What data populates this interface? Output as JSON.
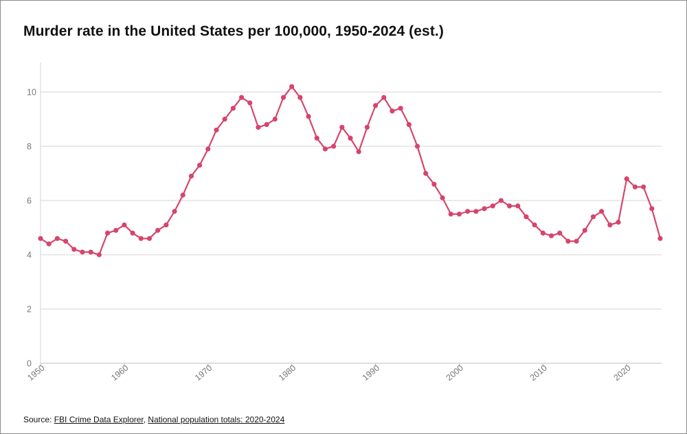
{
  "chart_data": {
    "type": "line",
    "title": "Murder rate in the United States per 100,000, 1950-2024 (est.)",
    "xlabel": "",
    "ylabel": "",
    "xlim": [
      1950,
      2024
    ],
    "ylim": [
      0,
      11
    ],
    "yticks": [
      0,
      2,
      4,
      6,
      8,
      10
    ],
    "xticks": [
      1950,
      1960,
      1970,
      1980,
      1990,
      2000,
      2010,
      2020
    ],
    "grid": true,
    "series": [
      {
        "name": "Murder rate per 100,000",
        "color": "#d6456c",
        "x": [
          1950,
          1951,
          1952,
          1953,
          1954,
          1955,
          1956,
          1957,
          1958,
          1959,
          1960,
          1961,
          1962,
          1963,
          1964,
          1965,
          1966,
          1967,
          1968,
          1969,
          1970,
          1971,
          1972,
          1973,
          1974,
          1975,
          1976,
          1977,
          1978,
          1979,
          1980,
          1981,
          1982,
          1983,
          1984,
          1985,
          1986,
          1987,
          1988,
          1989,
          1990,
          1991,
          1992,
          1993,
          1994,
          1995,
          1996,
          1997,
          1998,
          1999,
          2000,
          2001,
          2002,
          2003,
          2004,
          2005,
          2006,
          2007,
          2008,
          2009,
          2010,
          2011,
          2012,
          2013,
          2014,
          2015,
          2016,
          2017,
          2018,
          2019,
          2020,
          2021,
          2022,
          2023,
          2024
        ],
        "values": [
          4.6,
          4.4,
          4.6,
          4.5,
          4.2,
          4.1,
          4.1,
          4.0,
          4.8,
          4.9,
          5.1,
          4.8,
          4.6,
          4.6,
          4.9,
          5.1,
          5.6,
          6.2,
          6.9,
          7.3,
          7.9,
          8.6,
          9.0,
          9.4,
          9.8,
          9.6,
          8.7,
          8.8,
          9.0,
          9.8,
          10.2,
          9.8,
          9.1,
          8.3,
          7.9,
          8.0,
          8.7,
          8.3,
          7.8,
          8.7,
          9.5,
          9.8,
          9.3,
          9.4,
          8.8,
          8.0,
          7.0,
          6.6,
          6.1,
          5.5,
          5.5,
          5.6,
          5.6,
          5.7,
          5.8,
          6.0,
          5.8,
          5.8,
          5.4,
          5.1,
          4.8,
          4.7,
          4.8,
          4.5,
          4.5,
          4.9,
          5.4,
          5.6,
          5.1,
          5.2,
          6.8,
          6.5,
          6.5,
          5.7,
          4.6
        ]
      }
    ]
  },
  "source": {
    "prefix": "Source: ",
    "link1": "FBI Crime Data Explorer",
    "separator": ", ",
    "link2": "National population totals: 2020-2024"
  }
}
